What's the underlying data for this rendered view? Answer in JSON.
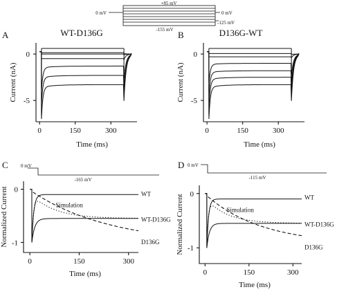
{
  "protocol": {
    "hold_label": "0 mV",
    "top_label": "+85 mV",
    "bottom_label": "-155 mV",
    "tail_label": "0 mV",
    "tail_low_label": "-125 mV"
  },
  "panels": {
    "A": {
      "letter": "A",
      "title": "WT-D136G"
    },
    "B": {
      "letter": "B",
      "title": "D136G-WT"
    },
    "C": {
      "letter": "C",
      "step_hold": "0 mV",
      "step_level": "-165 mV"
    },
    "D": {
      "letter": "D",
      "step_hold": "0 mV",
      "step_level": "-115 mV"
    }
  },
  "chart_data": [
    {
      "panel": "A",
      "type": "line",
      "xlabel": "Time (ms)",
      "ylabel": "Current (nA)",
      "xticks": [
        "0",
        "150",
        "300"
      ],
      "yticks": [
        "0",
        "-5"
      ],
      "xlim": [
        -15,
        410
      ],
      "ylim": [
        -7,
        1.2
      ],
      "step_end_ms": 355,
      "series": [
        {
          "steady": 0.15
        },
        {
          "steady": 0.0
        },
        {
          "steady": -0.5
        },
        {
          "steady": -1.3
        },
        {
          "steady": -2.3
        },
        {
          "steady": -3.3
        }
      ]
    },
    {
      "panel": "B",
      "type": "line",
      "xlabel": "Time (ms)",
      "ylabel": "Current (nA)",
      "xticks": [
        "0",
        "150",
        "300"
      ],
      "yticks": [
        "0",
        "-5"
      ],
      "xlim": [
        -15,
        410
      ],
      "ylim": [
        -7,
        1.2
      ],
      "step_end_ms": 355,
      "series": [
        {
          "steady": 0.05
        },
        {
          "steady": -0.3
        },
        {
          "steady": -1.0
        },
        {
          "steady": -1.8
        },
        {
          "steady": -2.5
        },
        {
          "steady": -3.3
        }
      ]
    },
    {
      "panel": "C",
      "type": "line",
      "xlabel": "Time (ms)",
      "ylabel": "Normalized Current",
      "xticks": [
        "0",
        "150",
        "300"
      ],
      "yticks": [
        "0",
        "-1"
      ],
      "xlim": [
        -15,
        330
      ],
      "ylim": [
        -1.15,
        0.15
      ],
      "series": [
        {
          "name": "WT",
          "style": "solid"
        },
        {
          "name": "WT-D136G",
          "style": "solid"
        },
        {
          "name": "D136G",
          "style": "dashed"
        },
        {
          "name": "Simulation",
          "style": "dotted"
        }
      ]
    },
    {
      "panel": "D",
      "type": "line",
      "xlabel": "Time (ms)",
      "ylabel": "Normalized Current",
      "xticks": [
        "0",
        "150",
        "300"
      ],
      "yticks": [
        "0",
        "-1"
      ],
      "xlim": [
        -15,
        330
      ],
      "ylim": [
        -1.15,
        0.15
      ],
      "series": [
        {
          "name": "WT",
          "style": "solid"
        },
        {
          "name": "WT-D136G",
          "style": "solid"
        },
        {
          "name": "D136G",
          "style": "dashed"
        },
        {
          "name": "Simulation",
          "style": "dotted"
        }
      ]
    }
  ]
}
